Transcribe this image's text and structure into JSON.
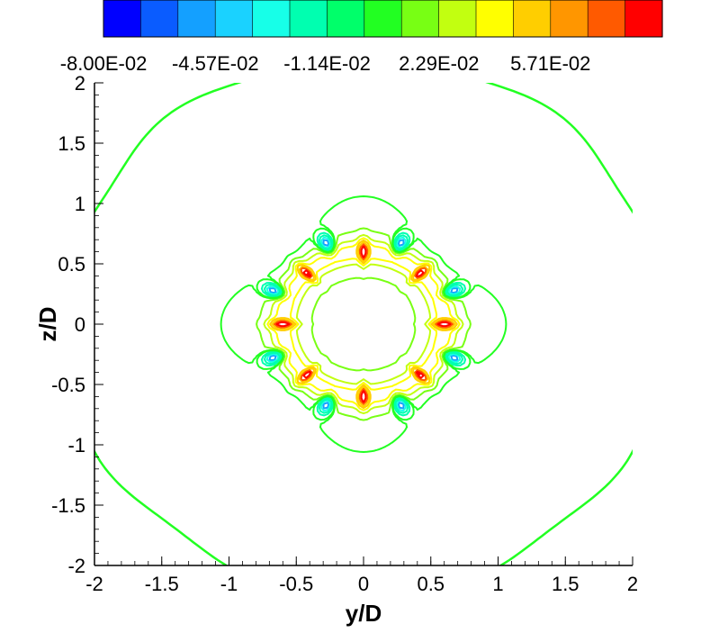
{
  "chart_data": {
    "type": "contour",
    "xlabel": "y/D",
    "ylabel": "z/D",
    "xlim": [
      -2,
      2
    ],
    "ylim": [
      -2,
      2
    ],
    "x_ticks": [
      -2,
      -1.5,
      -1,
      -0.5,
      0,
      0.5,
      1,
      1.5,
      2
    ],
    "y_ticks": [
      -2,
      -1.5,
      -1,
      -0.5,
      0,
      0.5,
      1,
      1.5,
      2
    ],
    "x_tick_labels": [
      "-2",
      "-1.5",
      "-1",
      "-0.5",
      "0",
      "0.5",
      "1",
      "1.5",
      "2"
    ],
    "y_tick_labels": [
      "-2",
      "-1.5",
      "-1",
      "-0.5",
      "0",
      "0.5",
      "1",
      "1.5",
      "2"
    ],
    "grid": false,
    "legend": "colorbar-top",
    "colorbar": {
      "colors": [
        "#0000ff",
        "#0a5cff",
        "#14a0ff",
        "#1ad2ff",
        "#17ffe8",
        "#00ffb0",
        "#00ff6a",
        "#22ff22",
        "#78ff14",
        "#c2ff10",
        "#ffff00",
        "#ffce00",
        "#ff9600",
        "#ff5a00",
        "#ff0000"
      ],
      "labels": [
        "-8.00E-02",
        "-4.57E-02",
        "-1.14E-02",
        "2.29E-02",
        "5.71E-02"
      ],
      "label_values": [
        -0.08,
        -0.0457,
        -0.0114,
        0.0229,
        0.0571
      ],
      "vmin": -0.08,
      "vmax": 0.0914
    },
    "lobe_count": 8,
    "lobe_radius": 0.6,
    "outer_ring_radius": 2.23
  }
}
